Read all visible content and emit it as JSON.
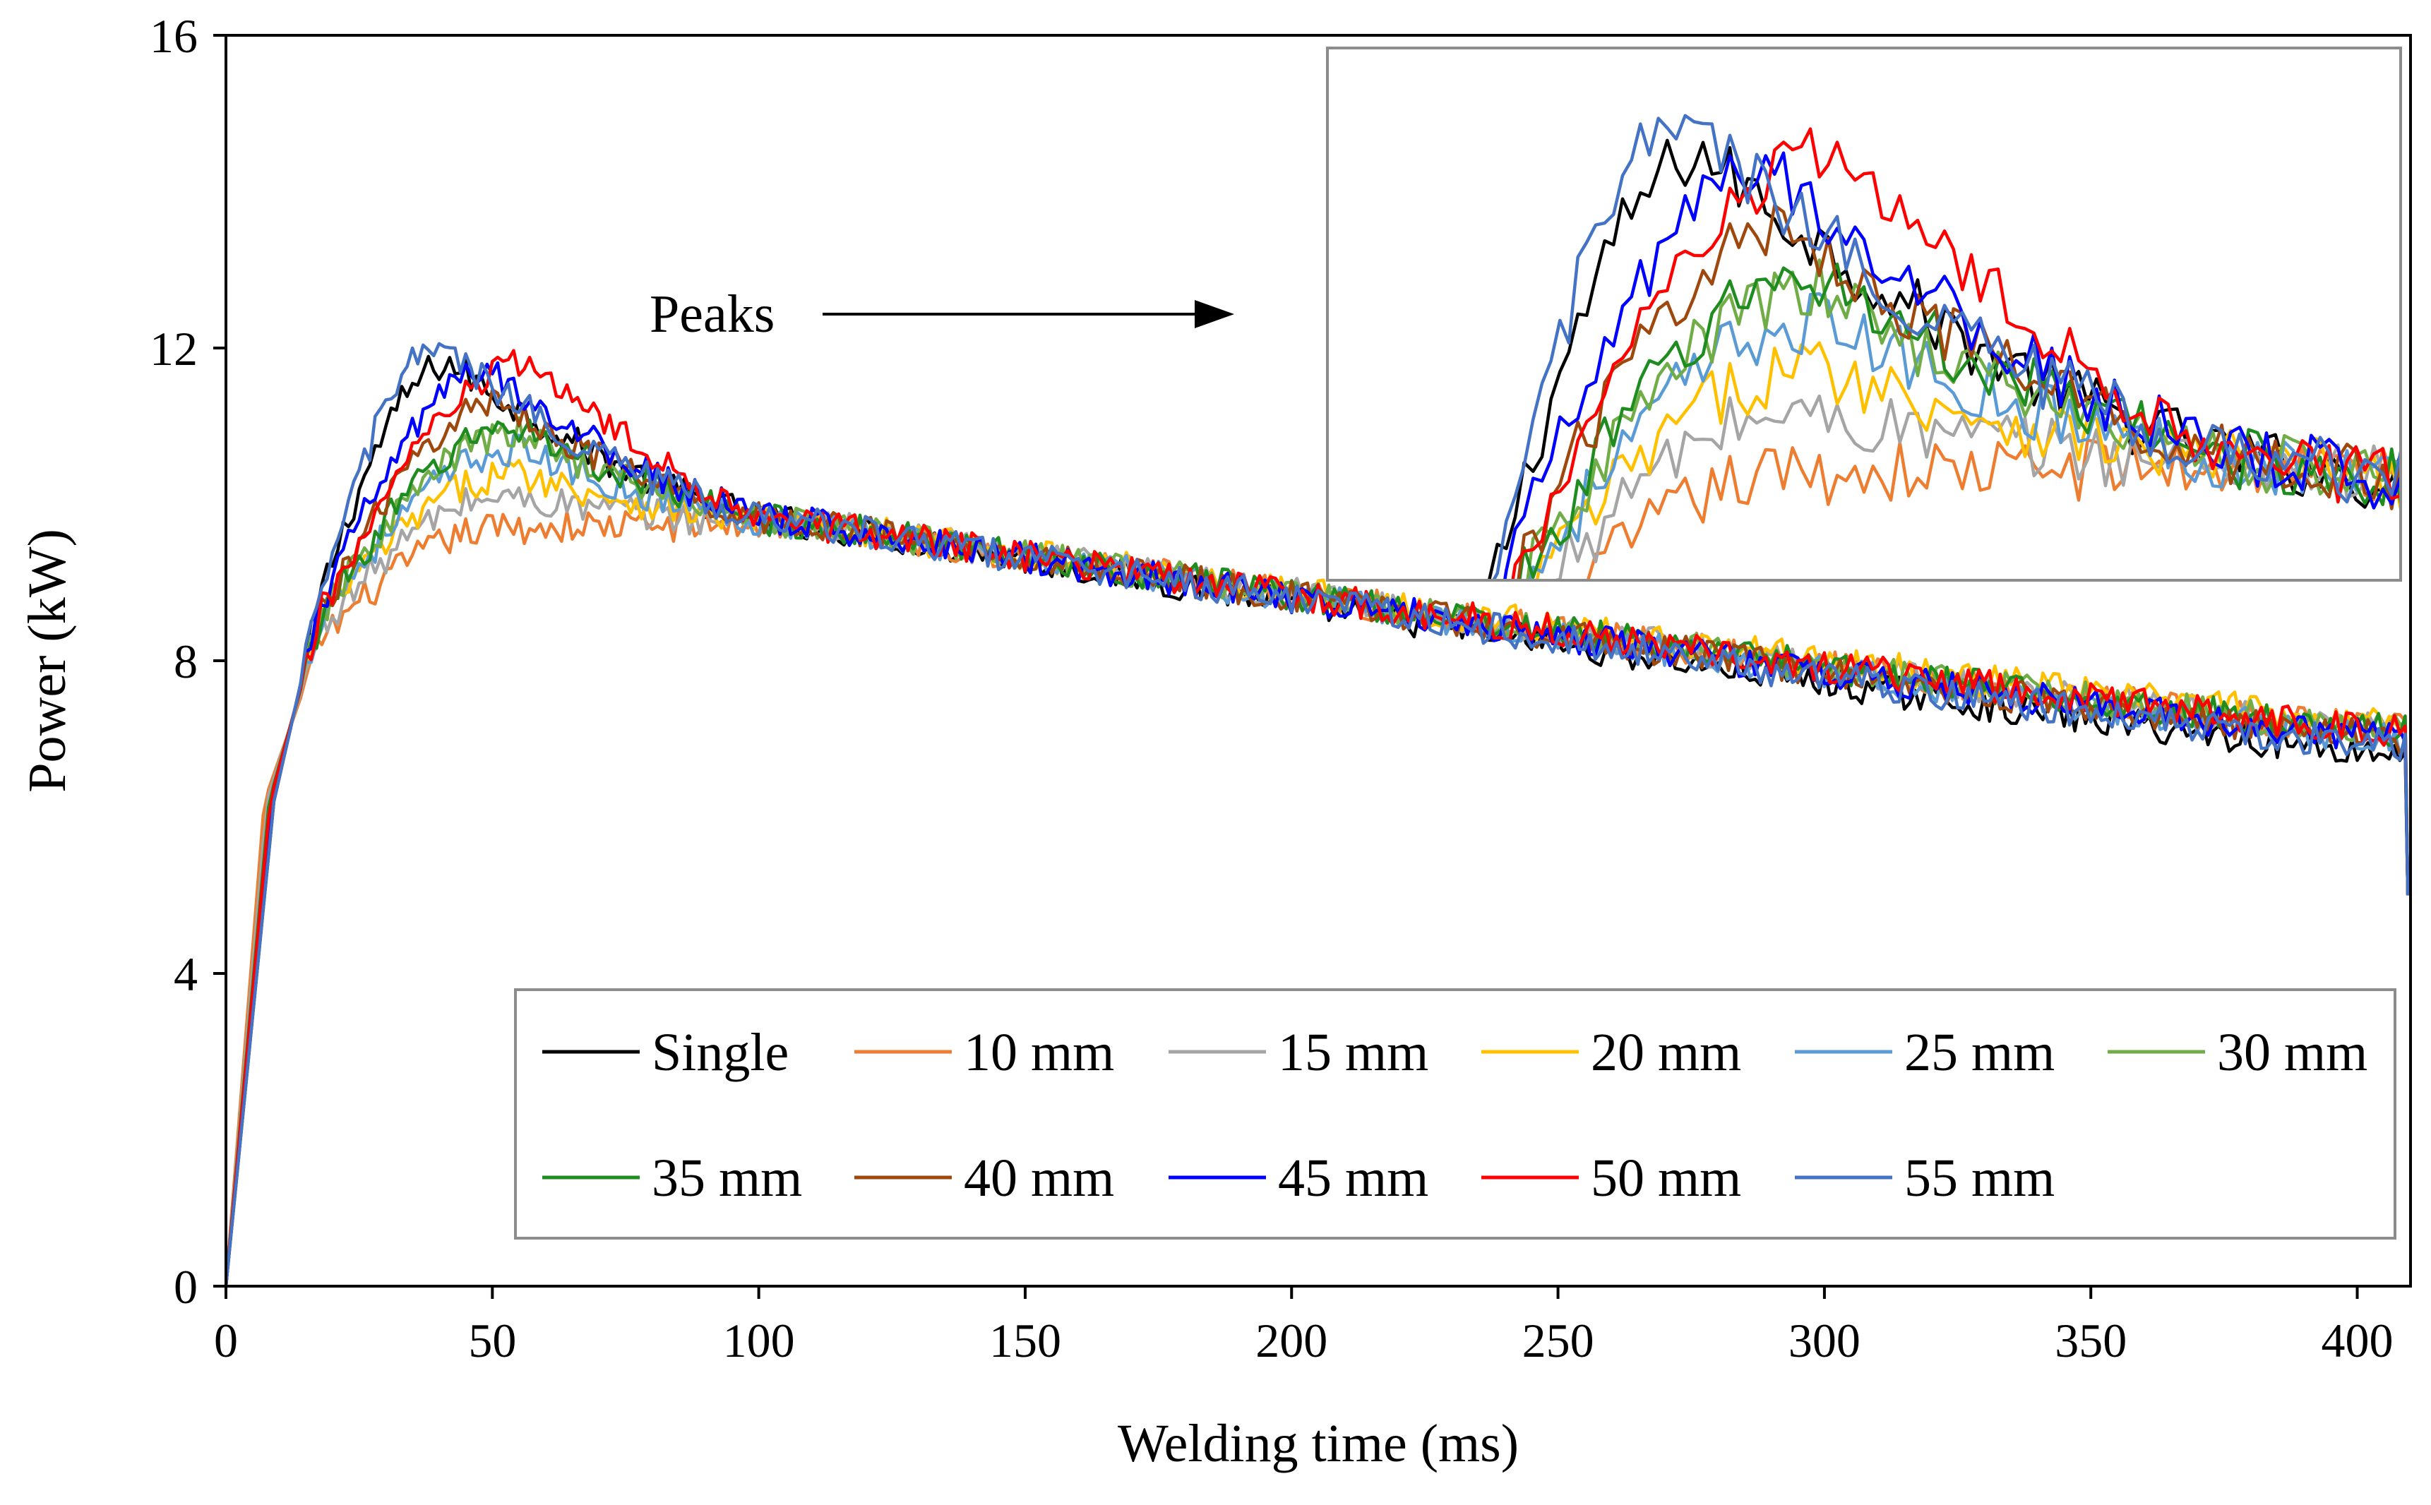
{
  "chart_data": {
    "type": "line",
    "title": "",
    "xlabel": "Welding time (ms)",
    "ylabel": "Power  (kW)",
    "xlim": [
      0,
      410
    ],
    "ylim": [
      0,
      16
    ],
    "x_ticks": [
      "0",
      "50",
      "100",
      "150",
      "200",
      "250",
      "300",
      "350",
      "400"
    ],
    "y_ticks": [
      "0",
      "4",
      "8",
      "12",
      "16"
    ],
    "grid": false,
    "legend_position": "bottom-right",
    "annotation": "Peaks",
    "inset": {
      "description": "zoomed view of peaks",
      "xlim": [
        0,
        120
      ],
      "ylim": [
        9,
        12.5
      ]
    },
    "series": [
      {
        "name": "Single",
        "color": "#000000",
        "peak_time": 42,
        "peak_value": 11.8,
        "rise": 1.0,
        "end_value": 6.8
      },
      {
        "name": "10 mm",
        "color": "#ED7D31",
        "peak_time": 52,
        "peak_value": 9.7,
        "rise": 0.8,
        "end_value": 7.1
      },
      {
        "name": "15 mm",
        "color": "#A5A5A5",
        "peak_time": 52,
        "peak_value": 10.1,
        "rise": 0.85,
        "end_value": 7.1
      },
      {
        "name": "20 mm",
        "color": "#FFC000",
        "peak_time": 55,
        "peak_value": 10.4,
        "rise": 0.9,
        "end_value": 7.2
      },
      {
        "name": "25 mm",
        "color": "#5B9BD5",
        "peak_time": 55,
        "peak_value": 10.7,
        "rise": 0.9,
        "end_value": 7.0
      },
      {
        "name": "30 mm",
        "color": "#70AD47",
        "peak_time": 55,
        "peak_value": 10.9,
        "rise": 0.9,
        "end_value": 7.1
      },
      {
        "name": "35 mm",
        "color": "#1E8C1E",
        "peak_time": 55,
        "peak_value": 11.0,
        "rise": 0.9,
        "end_value": 7.1
      },
      {
        "name": "40 mm",
        "color": "#9E480E",
        "peak_time": 52,
        "peak_value": 11.3,
        "rise": 0.92,
        "end_value": 7.0
      },
      {
        "name": "45 mm",
        "color": "#0000FF",
        "peak_time": 50,
        "peak_value": 11.7,
        "rise": 0.95,
        "end_value": 7.0
      },
      {
        "name": "50 mm",
        "color": "#FF0000",
        "peak_time": 58,
        "peak_value": 11.8,
        "rise": 0.92,
        "end_value": 7.1
      },
      {
        "name": "55 mm",
        "color": "#4472C4",
        "peak_time": 40,
        "peak_value": 12.0,
        "rise": 1.0,
        "end_value": 6.9
      }
    ]
  }
}
